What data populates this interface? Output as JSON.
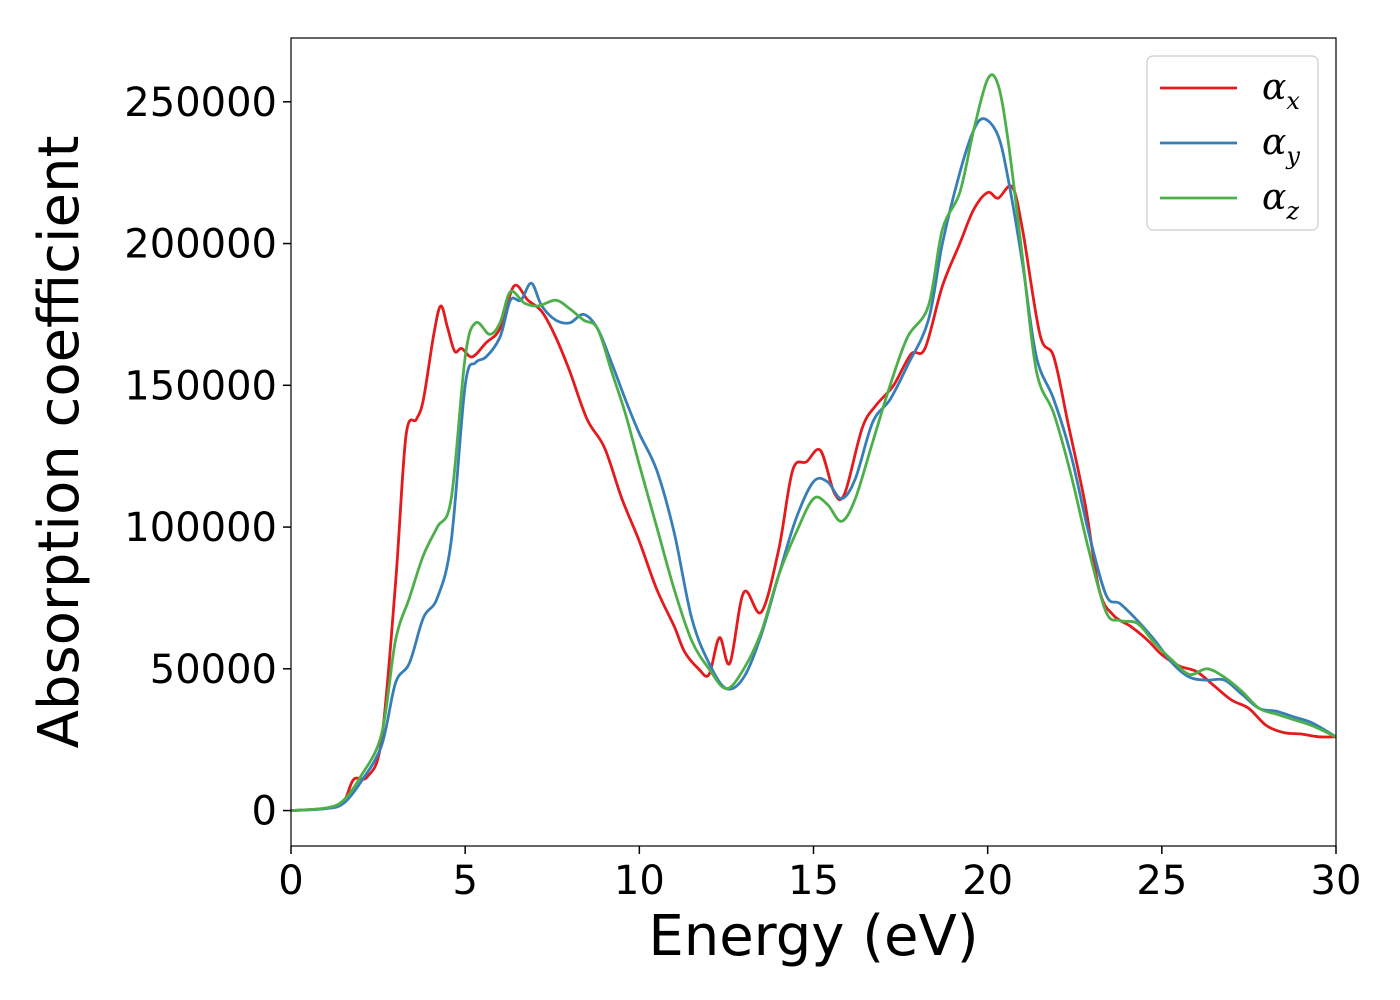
{
  "chart_data": {
    "type": "line",
    "xlabel": "Energy (eV)",
    "ylabel": "Absorption coefficient",
    "xlim": [
      0,
      30
    ],
    "ylim": [
      -12500,
      272500
    ],
    "xticks": [
      0,
      5,
      10,
      15,
      20,
      25,
      30
    ],
    "yticks": [
      0,
      50000,
      100000,
      150000,
      200000,
      250000
    ],
    "grid": false,
    "legend_position": "top-right",
    "series": [
      {
        "name": "α_x",
        "label_base": "α",
        "label_sub": "x",
        "color": "#e41a1c",
        "points": [
          [
            0,
            0
          ],
          [
            1,
            800
          ],
          [
            1.5,
            3000
          ],
          [
            1.8,
            11000
          ],
          [
            2.2,
            12000
          ],
          [
            2.6,
            25000
          ],
          [
            3,
            80000
          ],
          [
            3.3,
            132000
          ],
          [
            3.6,
            138000
          ],
          [
            3.8,
            145000
          ],
          [
            4.1,
            168000
          ],
          [
            4.3,
            178000
          ],
          [
            4.5,
            170000
          ],
          [
            4.7,
            162000
          ],
          [
            4.9,
            163000
          ],
          [
            5.2,
            160000
          ],
          [
            5.6,
            165000
          ],
          [
            6,
            170000
          ],
          [
            6.4,
            185000
          ],
          [
            6.8,
            180000
          ],
          [
            7.2,
            176000
          ],
          [
            7.6,
            167000
          ],
          [
            8,
            155000
          ],
          [
            8.5,
            138000
          ],
          [
            9,
            128000
          ],
          [
            9.5,
            110000
          ],
          [
            10,
            95000
          ],
          [
            10.5,
            78000
          ],
          [
            11,
            65000
          ],
          [
            11.3,
            56000
          ],
          [
            11.7,
            50000
          ],
          [
            12,
            48000
          ],
          [
            12.3,
            61000
          ],
          [
            12.6,
            52000
          ],
          [
            13,
            77000
          ],
          [
            13.5,
            70000
          ],
          [
            14,
            92000
          ],
          [
            14.4,
            120000
          ],
          [
            14.8,
            123000
          ],
          [
            15.2,
            127000
          ],
          [
            15.6,
            112000
          ],
          [
            15.9,
            112000
          ],
          [
            16.4,
            135000
          ],
          [
            16.8,
            143000
          ],
          [
            17.3,
            150000
          ],
          [
            17.8,
            161000
          ],
          [
            18.2,
            163000
          ],
          [
            18.7,
            185000
          ],
          [
            19.2,
            200000
          ],
          [
            19.6,
            212000
          ],
          [
            20,
            218000
          ],
          [
            20.3,
            216000
          ],
          [
            20.7,
            220000
          ],
          [
            21,
            205000
          ],
          [
            21.5,
            168000
          ],
          [
            21.9,
            160000
          ],
          [
            22.3,
            137000
          ],
          [
            22.8,
            108000
          ],
          [
            23.2,
            78000
          ],
          [
            23.6,
            69000
          ],
          [
            24.1,
            65000
          ],
          [
            24.6,
            60000
          ],
          [
            25,
            55000
          ],
          [
            25.5,
            51000
          ],
          [
            26,
            49000
          ],
          [
            26.5,
            44000
          ],
          [
            27,
            39000
          ],
          [
            27.5,
            36000
          ],
          [
            28,
            30000
          ],
          [
            28.5,
            27500
          ],
          [
            29,
            27000
          ],
          [
            29.5,
            26000
          ],
          [
            30,
            26000
          ]
        ]
      },
      {
        "name": "α_y",
        "label_base": "α",
        "label_sub": "y",
        "color": "#377eb8",
        "points": [
          [
            0,
            0
          ],
          [
            1,
            700
          ],
          [
            1.5,
            2500
          ],
          [
            2,
            10000
          ],
          [
            2.6,
            23000
          ],
          [
            3,
            45000
          ],
          [
            3.4,
            52000
          ],
          [
            3.8,
            68000
          ],
          [
            4.2,
            75000
          ],
          [
            4.6,
            95000
          ],
          [
            5,
            150000
          ],
          [
            5.3,
            158000
          ],
          [
            5.6,
            160000
          ],
          [
            6,
            167000
          ],
          [
            6.3,
            180000
          ],
          [
            6.6,
            180000
          ],
          [
            6.9,
            186000
          ],
          [
            7.2,
            178000
          ],
          [
            7.6,
            173000
          ],
          [
            8,
            172000
          ],
          [
            8.4,
            175000
          ],
          [
            8.8,
            170000
          ],
          [
            9.2,
            158000
          ],
          [
            9.6,
            145000
          ],
          [
            10,
            133000
          ],
          [
            10.5,
            120000
          ],
          [
            11,
            98000
          ],
          [
            11.5,
            68000
          ],
          [
            12,
            52000
          ],
          [
            12.5,
            43000
          ],
          [
            13,
            47000
          ],
          [
            13.5,
            62000
          ],
          [
            14,
            83000
          ],
          [
            14.5,
            103000
          ],
          [
            15,
            116000
          ],
          [
            15.4,
            116000
          ],
          [
            15.8,
            110000
          ],
          [
            16.2,
            117000
          ],
          [
            16.7,
            137000
          ],
          [
            17.2,
            145000
          ],
          [
            17.7,
            157000
          ],
          [
            18.3,
            173000
          ],
          [
            18.7,
            200000
          ],
          [
            19.2,
            225000
          ],
          [
            19.6,
            240000
          ],
          [
            19.9,
            244000
          ],
          [
            20.3,
            238000
          ],
          [
            20.6,
            222000
          ],
          [
            21,
            193000
          ],
          [
            21.4,
            160000
          ],
          [
            21.9,
            145000
          ],
          [
            22.4,
            125000
          ],
          [
            22.9,
            98000
          ],
          [
            23.4,
            76000
          ],
          [
            23.8,
            73000
          ],
          [
            24.3,
            67000
          ],
          [
            24.8,
            60000
          ],
          [
            25.3,
            52000
          ],
          [
            25.8,
            47000
          ],
          [
            26.3,
            46000
          ],
          [
            26.8,
            46000
          ],
          [
            27.3,
            41000
          ],
          [
            27.8,
            36000
          ],
          [
            28.3,
            35000
          ],
          [
            28.8,
            33000
          ],
          [
            29.3,
            31000
          ],
          [
            30,
            26000
          ]
        ]
      },
      {
        "name": "α_z",
        "label_base": "α",
        "label_sub": "z",
        "color": "#4daf4a",
        "points": [
          [
            0,
            0
          ],
          [
            1,
            900
          ],
          [
            1.5,
            3500
          ],
          [
            2,
            12000
          ],
          [
            2.6,
            27000
          ],
          [
            3,
            60000
          ],
          [
            3.4,
            75000
          ],
          [
            3.8,
            90000
          ],
          [
            4.2,
            100000
          ],
          [
            4.6,
            110000
          ],
          [
            5,
            160000
          ],
          [
            5.3,
            172000
          ],
          [
            5.7,
            168000
          ],
          [
            6,
            172000
          ],
          [
            6.3,
            183000
          ],
          [
            6.7,
            179000
          ],
          [
            7.1,
            178000
          ],
          [
            7.6,
            180000
          ],
          [
            8,
            177000
          ],
          [
            8.4,
            173000
          ],
          [
            8.8,
            170000
          ],
          [
            9.2,
            155000
          ],
          [
            9.6,
            140000
          ],
          [
            10,
            122000
          ],
          [
            10.5,
            100000
          ],
          [
            11,
            78000
          ],
          [
            11.5,
            60000
          ],
          [
            12,
            50000
          ],
          [
            12.5,
            43000
          ],
          [
            13,
            50000
          ],
          [
            13.5,
            63000
          ],
          [
            14,
            83000
          ],
          [
            14.5,
            98000
          ],
          [
            15,
            110000
          ],
          [
            15.4,
            108000
          ],
          [
            15.8,
            102000
          ],
          [
            16.2,
            110000
          ],
          [
            16.7,
            130000
          ],
          [
            17.2,
            150000
          ],
          [
            17.7,
            167000
          ],
          [
            18.3,
            178000
          ],
          [
            18.7,
            205000
          ],
          [
            19.2,
            218000
          ],
          [
            19.6,
            240000
          ],
          [
            20,
            258000
          ],
          [
            20.3,
            256000
          ],
          [
            20.6,
            235000
          ],
          [
            21,
            195000
          ],
          [
            21.4,
            155000
          ],
          [
            21.9,
            140000
          ],
          [
            22.4,
            118000
          ],
          [
            22.9,
            92000
          ],
          [
            23.4,
            70000
          ],
          [
            23.8,
            67000
          ],
          [
            24.3,
            66000
          ],
          [
            24.8,
            59000
          ],
          [
            25.3,
            53000
          ],
          [
            25.8,
            48000
          ],
          [
            26.3,
            50000
          ],
          [
            26.8,
            47000
          ],
          [
            27.3,
            42000
          ],
          [
            27.8,
            36000
          ],
          [
            28.3,
            34000
          ],
          [
            28.8,
            32000
          ],
          [
            29.3,
            30000
          ],
          [
            30,
            26000
          ]
        ]
      }
    ]
  }
}
